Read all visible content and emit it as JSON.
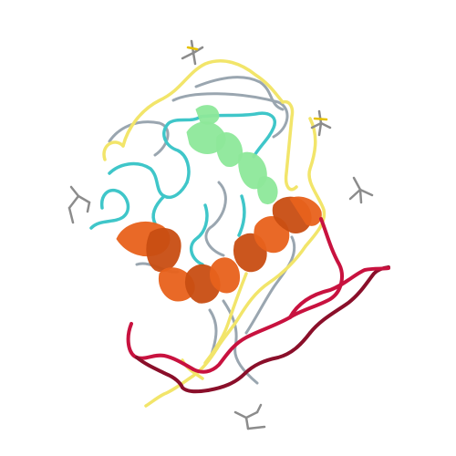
{
  "image": {
    "kind": "protein-ribbon-structure",
    "background_color": "#ffffff"
  },
  "colors": {
    "coil_yellow": "#f2e56a",
    "coil_cyan": "#3fc6c9",
    "coil_gray": "#9aa6b0",
    "coil_red": "#c8123f",
    "coil_darkred": "#8a0f2a",
    "helix_orange": "#e8621c",
    "helix_orange_dark": "#c94e12",
    "helix_green": "#8ee89a",
    "sidechain_gray": "#8c8c8c",
    "ligand_yellow": "#e6c200"
  },
  "ligands": [
    {
      "name": "ligand-top"
    },
    {
      "name": "ligand-upper-right"
    },
    {
      "name": "ligand-right"
    },
    {
      "name": "ligand-left"
    },
    {
      "name": "ligand-bottom"
    }
  ]
}
